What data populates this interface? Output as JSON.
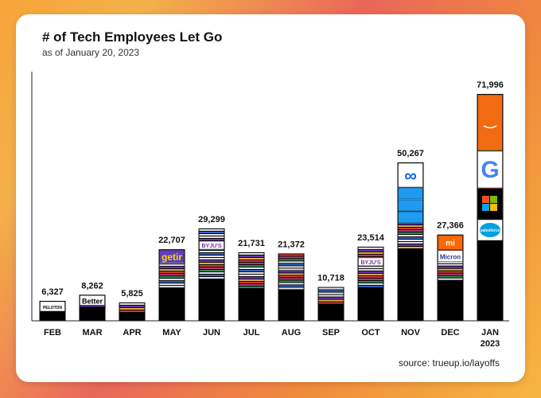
{
  "chart_data": {
    "type": "bar",
    "title": "# of Tech Employees Let Go",
    "subtitle": "as of January 20, 2023",
    "categories": [
      "FEB",
      "MAR",
      "APR",
      "MAY",
      "JUN",
      "JUL",
      "AUG",
      "SEP",
      "OCT",
      "NOV",
      "DEC",
      "JAN"
    ],
    "category_sublabels": [
      "",
      "",
      "",
      "",
      "",
      "",
      "",
      "",
      "",
      "",
      "",
      "2023"
    ],
    "values": [
      6327,
      8262,
      5825,
      22707,
      29299,
      21731,
      21372,
      10718,
      23514,
      50267,
      27366,
      71996
    ],
    "value_labels": [
      "6,327",
      "8,262",
      "5,825",
      "22,707",
      "29,299",
      "21,731",
      "21,372",
      "10,718",
      "23,514",
      "50,267",
      "27,366",
      "71,996"
    ],
    "ylim": [
      0,
      75000
    ],
    "grid": false,
    "legend": "none",
    "source": "source: trueup.io/layoffs",
    "bar_color": "#000000",
    "logo_texts": {
      "peloton": "PELOTON",
      "better": "Better",
      "getir": "getir",
      "byjus": "BYJU'S",
      "micron": "Micron",
      "salesforce": "salesforce",
      "google": "G"
    },
    "colors": {
      "amazon_orange": "#f26b12",
      "twitter_blue": "#1d9bf0",
      "meta_blue": "#0668e1",
      "xiaomi_orange": "#ff6700",
      "microsoft_red": "#f25022",
      "microsoft_green": "#7fba00",
      "microsoft_blue": "#00a4ef",
      "microsoft_yellow": "#ffb900",
      "getir_purple": "#5d3ebc",
      "getir_yellow": "#ffd300"
    }
  }
}
